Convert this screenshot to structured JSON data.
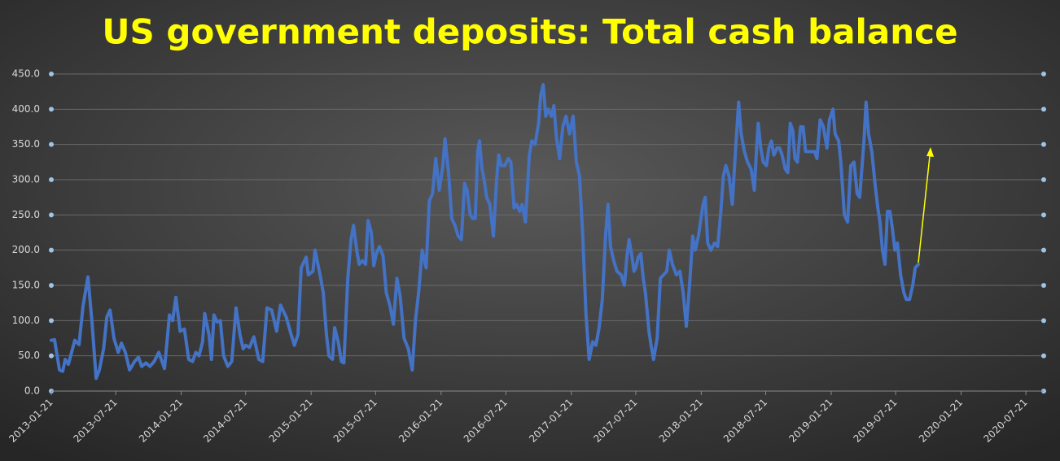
{
  "chart_data": {
    "type": "line",
    "title": "US government deposits: Total cash balance",
    "color": "#4472c4",
    "grid": true,
    "xlim": [
      "2013-01-21",
      "2020-09-09"
    ],
    "xticks": [
      "2013-01-21",
      "2013-07-21",
      "2014-01-21",
      "2014-07-21",
      "2015-01-21",
      "2015-07-21",
      "2016-01-21",
      "2016-07-21",
      "2017-01-21",
      "2017-07-21",
      "2018-01-21",
      "2018-07-21",
      "2019-01-21",
      "2019-07-21",
      "2020-01-21",
      "2020-07-21"
    ],
    "ylim": [
      0,
      450
    ],
    "yticks": [
      {
        "value": 0,
        "label": "0.0"
      },
      {
        "value": 50,
        "label": "50.0"
      },
      {
        "value": 100,
        "label": "100.0"
      },
      {
        "value": 150,
        "label": "150.0"
      },
      {
        "value": 200,
        "label": "200.0"
      },
      {
        "value": 250,
        "label": "250.0"
      },
      {
        "value": 300,
        "label": "300.0"
      },
      {
        "value": 350,
        "label": "350.0"
      },
      {
        "value": 400,
        "label": "400.0"
      },
      {
        "value": 450,
        "label": "450.0"
      }
    ],
    "x": [
      "2013-01-21",
      "2013-01-30",
      "2013-02-13",
      "2013-02-22",
      "2013-03-01",
      "2013-03-10",
      "2013-03-28",
      "2013-04-09",
      "2013-04-20",
      "2013-05-04",
      "2013-05-15",
      "2013-05-27",
      "2013-06-05",
      "2013-06-17",
      "2013-06-26",
      "2013-07-05",
      "2013-07-16",
      "2013-07-28",
      "2013-08-06",
      "2013-08-17",
      "2013-08-29",
      "2013-09-12",
      "2013-09-23",
      "2013-10-02",
      "2013-10-14",
      "2013-10-25",
      "2013-11-06",
      "2013-11-19",
      "2013-12-05",
      "2013-12-19",
      "2013-12-28",
      "2014-01-06",
      "2014-01-18",
      "2014-01-30",
      "2014-02-11",
      "2014-02-22",
      "2014-03-03",
      "2014-03-12",
      "2014-03-22",
      "2014-03-28",
      "2014-04-09",
      "2014-04-16",
      "2014-04-23",
      "2014-05-02",
      "2014-05-11",
      "2014-05-20",
      "2014-06-01",
      "2014-06-12",
      "2014-06-24",
      "2014-07-05",
      "2014-07-14",
      "2014-07-21",
      "2014-08-01",
      "2014-08-13",
      "2014-08-27",
      "2014-09-07",
      "2014-09-19",
      "2014-10-02",
      "2014-10-16",
      "2014-10-27",
      "2014-11-12",
      "2014-11-26",
      "2014-12-05",
      "2014-12-15",
      "2014-12-24",
      "2015-01-07",
      "2015-01-13",
      "2015-01-26",
      "2015-02-01",
      "2015-02-15",
      "2015-02-24",
      "2015-03-05",
      "2015-03-12",
      "2015-03-22",
      "2015-03-28",
      "2015-04-07",
      "2015-04-16",
      "2015-04-23",
      "2015-05-04",
      "2015-05-13",
      "2015-05-20",
      "2015-05-29",
      "2015-06-05",
      "2015-06-14",
      "2015-06-23",
      "2015-06-30",
      "2015-07-09",
      "2015-07-16",
      "2015-07-23",
      "2015-08-01",
      "2015-08-11",
      "2015-08-20",
      "2015-08-31",
      "2015-09-09",
      "2015-09-19",
      "2015-09-28",
      "2015-10-09",
      "2015-10-21",
      "2015-11-01",
      "2015-11-10",
      "2015-11-19",
      "2015-11-29",
      "2015-12-10",
      "2015-12-19",
      "2015-12-28",
      "2016-01-06",
      "2016-01-16",
      "2016-01-26",
      "2016-02-01",
      "2016-02-11",
      "2016-02-20",
      "2016-02-29",
      "2016-03-09",
      "2016-03-18",
      "2016-03-27",
      "2016-04-03",
      "2016-04-12",
      "2016-04-19",
      "2016-04-26",
      "2016-05-03",
      "2016-05-08",
      "2016-05-15",
      "2016-05-21",
      "2016-05-28",
      "2016-06-06",
      "2016-06-16",
      "2016-06-25",
      "2016-07-01",
      "2016-07-08",
      "2016-07-18",
      "2016-07-28",
      "2016-08-04",
      "2016-08-13",
      "2016-08-20",
      "2016-08-29",
      "2016-09-05",
      "2016-09-14",
      "2016-09-25",
      "2016-10-02",
      "2016-10-11",
      "2016-10-21",
      "2016-10-27",
      "2016-11-03",
      "2016-11-10",
      "2016-11-17",
      "2016-11-26",
      "2016-12-03",
      "2016-12-10",
      "2016-12-19",
      "2016-12-28",
      "2017-01-06",
      "2017-01-16",
      "2017-01-26",
      "2017-02-04",
      "2017-02-13",
      "2017-02-22",
      "2017-03-03",
      "2017-03-12",
      "2017-03-22",
      "2017-03-31",
      "2017-04-09",
      "2017-04-18",
      "2017-04-27",
      "2017-05-04",
      "2017-05-11",
      "2017-05-20",
      "2017-05-29",
      "2017-06-10",
      "2017-06-19",
      "2017-06-26",
      "2017-07-02",
      "2017-07-09",
      "2017-07-16",
      "2017-07-21",
      "2017-07-28",
      "2017-08-04",
      "2017-08-11",
      "2017-08-17",
      "2017-08-27",
      "2017-09-02",
      "2017-09-09",
      "2017-09-19",
      "2017-09-28",
      "2017-10-07",
      "2017-10-16",
      "2017-10-23",
      "2017-11-01",
      "2017-11-12",
      "2017-11-22",
      "2017-12-01",
      "2017-12-10",
      "2017-12-19",
      "2017-12-28",
      "2018-01-04",
      "2018-01-13",
      "2018-01-26",
      "2018-02-01",
      "2018-02-08",
      "2018-02-17",
      "2018-02-27",
      "2018-03-08",
      "2018-03-17",
      "2018-03-24",
      "2018-03-31",
      "2018-04-09",
      "2018-04-18",
      "2018-04-27",
      "2018-05-06",
      "2018-05-13",
      "2018-05-22",
      "2018-05-31",
      "2018-06-10",
      "2018-06-19",
      "2018-06-26",
      "2018-06-30",
      "2018-07-07",
      "2018-07-14",
      "2018-07-23",
      "2018-07-30",
      "2018-08-06",
      "2018-08-13",
      "2018-08-22",
      "2018-08-29",
      "2018-09-05",
      "2018-09-14",
      "2018-09-21",
      "2018-09-28",
      "2018-10-05",
      "2018-10-11",
      "2018-10-18",
      "2018-10-27",
      "2018-11-03",
      "2018-11-10",
      "2018-11-19",
      "2018-11-28",
      "2018-12-05",
      "2018-12-12",
      "2018-12-21",
      "2018-12-30",
      "2019-01-09",
      "2019-01-16",
      "2019-01-26",
      "2019-02-01",
      "2019-02-11",
      "2019-02-17",
      "2019-02-27",
      "2019-03-08",
      "2019-03-17",
      "2019-03-26",
      "2019-04-04",
      "2019-04-11",
      "2019-04-23",
      "2019-04-29",
      "2019-05-06",
      "2019-05-15",
      "2019-05-25",
      "2019-06-01",
      "2019-06-07",
      "2019-06-14",
      "2019-06-21",
      "2019-06-28",
      "2019-07-05",
      "2019-07-12",
      "2019-07-19",
      "2019-07-26",
      "2019-08-04",
      "2019-08-13",
      "2019-08-20",
      "2019-08-29",
      "2019-09-07",
      "2019-09-14",
      "2019-09-23"
    ],
    "values": [
      72,
      73,
      30,
      28,
      45,
      38,
      72,
      66,
      120,
      162,
      100,
      18,
      30,
      60,
      105,
      115,
      75,
      55,
      68,
      55,
      30,
      42,
      48,
      35,
      40,
      35,
      42,
      55,
      32,
      108,
      100,
      133,
      85,
      88,
      45,
      42,
      55,
      50,
      70,
      110,
      80,
      45,
      108,
      98,
      100,
      50,
      35,
      42,
      118,
      80,
      60,
      65,
      62,
      77,
      45,
      42,
      118,
      115,
      85,
      122,
      105,
      80,
      65,
      80,
      175,
      190,
      165,
      170,
      200,
      165,
      140,
      80,
      50,
      45,
      90,
      70,
      42,
      40,
      160,
      215,
      235,
      200,
      180,
      185,
      180,
      242,
      225,
      178,
      195,
      205,
      192,
      140,
      120,
      95,
      160,
      135,
      75,
      60,
      30,
      100,
      140,
      200,
      175,
      270,
      280,
      330,
      285,
      320,
      358,
      310,
      245,
      235,
      220,
      215,
      295,
      285,
      250,
      245,
      245,
      340,
      355,
      315,
      300,
      275,
      265,
      220,
      300,
      335,
      320,
      320,
      330,
      325,
      260,
      265,
      255,
      265,
      240,
      335,
      355,
      350,
      380,
      420,
      435,
      390,
      400,
      390,
      405,
      360,
      330,
      375,
      390,
      365,
      390,
      325,
      305,
      220,
      110,
      45,
      70,
      65,
      90,
      130,
      220,
      265,
      205,
      185,
      170,
      165,
      150,
      190,
      215,
      195,
      170,
      175,
      190,
      195,
      160,
      140,
      85,
      65,
      45,
      75,
      160,
      165,
      170,
      200,
      180,
      165,
      170,
      140,
      92,
      150,
      220,
      200,
      220,
      265,
      275,
      210,
      200,
      210,
      205,
      255,
      305,
      320,
      305,
      265,
      340,
      410,
      365,
      340,
      325,
      315,
      285,
      350,
      380,
      345,
      325,
      320,
      345,
      355,
      335,
      345,
      345,
      335,
      315,
      310,
      380,
      370,
      330,
      325,
      375,
      375,
      340,
      340,
      340,
      340,
      330,
      385,
      375,
      345,
      385,
      400,
      365,
      355,
      325,
      250,
      240,
      320,
      325,
      280,
      275,
      355,
      410,
      365,
      340,
      290,
      260,
      240,
      200,
      180,
      255,
      255,
      230,
      200,
      210,
      165,
      140,
      130,
      130,
      150,
      175,
      180
    ]
  }
}
